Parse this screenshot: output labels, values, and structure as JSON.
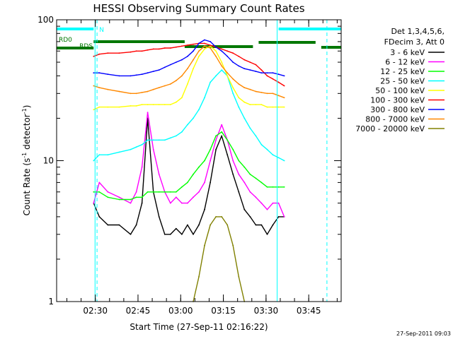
{
  "chart_data": {
    "type": "line",
    "title": "HESSI Observing Summary Count Rates",
    "xlabel": "Start Time (27-Sep-11 02:16:22)",
    "ylabel": "Count Rate (s⁻¹ detector⁻¹)",
    "ylabel_parts": [
      "Count Rate (s",
      "-1",
      " detector",
      "-1",
      ")"
    ],
    "y_scale": "log",
    "ylim": [
      1,
      100
    ],
    "y_ticks": [
      "1",
      "10",
      "100"
    ],
    "xlim_minutes": [
      0,
      100
    ],
    "x_ticks": [
      {
        "label": "02:30",
        "min": 13.6
      },
      {
        "label": "02:45",
        "min": 28.6
      },
      {
        "label": "03:00",
        "min": 43.6
      },
      {
        "label": "03:15",
        "min": 58.6
      },
      {
        "label": "03:30",
        "min": 73.6
      },
      {
        "label": "03:45",
        "min": 88.6
      }
    ],
    "legend_placement": "right",
    "legend_header": [
      "Det 1,3,4,5,6,",
      "FDecim 3, Att 0"
    ],
    "timestamp": "27-Sep-2011 09:03",
    "flags": [
      {
        "name": "N",
        "color": "#00ffff"
      },
      {
        "name": "RD0",
        "color": "#007700"
      },
      {
        "name": "RDS",
        "color": "#007700"
      }
    ],
    "series": [
      {
        "name": "3 - 6 keV",
        "color": "#000000",
        "points": [
          [
            13,
            5
          ],
          [
            15,
            4
          ],
          [
            18,
            3.5
          ],
          [
            22,
            3.5
          ],
          [
            26,
            3
          ],
          [
            28,
            3.5
          ],
          [
            30,
            5
          ],
          [
            32,
            20
          ],
          [
            34,
            6
          ],
          [
            36,
            4
          ],
          [
            38,
            3
          ],
          [
            40,
            3
          ],
          [
            42,
            3.3
          ],
          [
            44,
            3
          ],
          [
            46,
            3.5
          ],
          [
            48,
            3
          ],
          [
            50,
            3.5
          ],
          [
            52,
            4.5
          ],
          [
            54,
            7
          ],
          [
            56,
            12
          ],
          [
            58,
            15
          ],
          [
            60,
            11
          ],
          [
            62,
            8
          ],
          [
            64,
            6
          ],
          [
            66,
            4.5
          ],
          [
            68,
            4
          ],
          [
            70,
            3.5
          ],
          [
            72,
            3.5
          ],
          [
            74,
            3
          ],
          [
            76,
            3.5
          ],
          [
            78,
            4
          ],
          [
            80,
            4
          ]
        ]
      },
      {
        "name": "6 - 12 keV",
        "color": "#ff00ff",
        "points": [
          [
            13,
            5
          ],
          [
            15,
            7
          ],
          [
            18,
            6
          ],
          [
            22,
            5.5
          ],
          [
            26,
            5
          ],
          [
            28,
            6
          ],
          [
            30,
            9
          ],
          [
            32,
            22
          ],
          [
            34,
            12
          ],
          [
            36,
            8
          ],
          [
            38,
            6
          ],
          [
            40,
            5
          ],
          [
            42,
            5.5
          ],
          [
            44,
            5
          ],
          [
            46,
            5
          ],
          [
            48,
            5.5
          ],
          [
            50,
            6
          ],
          [
            52,
            7
          ],
          [
            54,
            10
          ],
          [
            56,
            14
          ],
          [
            58,
            18
          ],
          [
            60,
            14
          ],
          [
            62,
            10
          ],
          [
            64,
            8
          ],
          [
            66,
            7
          ],
          [
            68,
            6
          ],
          [
            70,
            5.5
          ],
          [
            72,
            5
          ],
          [
            74,
            4.5
          ],
          [
            76,
            5
          ],
          [
            78,
            5
          ],
          [
            80,
            4
          ]
        ]
      },
      {
        "name": "12 - 25 keV",
        "color": "#00ff00",
        "points": [
          [
            13,
            6
          ],
          [
            15,
            6
          ],
          [
            18,
            5.5
          ],
          [
            22,
            5.3
          ],
          [
            26,
            5.3
          ],
          [
            28,
            5.5
          ],
          [
            30,
            5.5
          ],
          [
            32,
            6
          ],
          [
            34,
            6
          ],
          [
            36,
            6
          ],
          [
            38,
            6
          ],
          [
            40,
            6
          ],
          [
            42,
            6
          ],
          [
            44,
            6.5
          ],
          [
            46,
            7
          ],
          [
            48,
            8
          ],
          [
            50,
            9
          ],
          [
            52,
            10
          ],
          [
            54,
            12
          ],
          [
            56,
            15
          ],
          [
            58,
            16
          ],
          [
            60,
            14
          ],
          [
            62,
            12
          ],
          [
            64,
            10
          ],
          [
            66,
            9
          ],
          [
            68,
            8
          ],
          [
            70,
            7.5
          ],
          [
            72,
            7
          ],
          [
            74,
            6.5
          ],
          [
            76,
            6.5
          ],
          [
            78,
            6.5
          ],
          [
            80,
            6.5
          ]
        ]
      },
      {
        "name": "25 - 50 keV",
        "color": "#00ffff",
        "points": [
          [
            13,
            10
          ],
          [
            15,
            11
          ],
          [
            18,
            11
          ],
          [
            22,
            11.5
          ],
          [
            26,
            12
          ],
          [
            28,
            12.5
          ],
          [
            30,
            13
          ],
          [
            32,
            14
          ],
          [
            34,
            14
          ],
          [
            36,
            14
          ],
          [
            38,
            14
          ],
          [
            40,
            14.5
          ],
          [
            42,
            15
          ],
          [
            44,
            16
          ],
          [
            46,
            18
          ],
          [
            48,
            20
          ],
          [
            50,
            23
          ],
          [
            52,
            28
          ],
          [
            54,
            36
          ],
          [
            56,
            40
          ],
          [
            58,
            44
          ],
          [
            60,
            40
          ],
          [
            62,
            30
          ],
          [
            64,
            24
          ],
          [
            66,
            20
          ],
          [
            68,
            17
          ],
          [
            70,
            15
          ],
          [
            72,
            13
          ],
          [
            74,
            12
          ],
          [
            76,
            11
          ],
          [
            78,
            10.5
          ],
          [
            80,
            10
          ]
        ]
      },
      {
        "name": "50 - 100 keV",
        "color": "#ffff00",
        "points": [
          [
            13,
            23
          ],
          [
            15,
            24
          ],
          [
            18,
            24
          ],
          [
            22,
            24
          ],
          [
            26,
            24.5
          ],
          [
            28,
            24.5
          ],
          [
            30,
            25
          ],
          [
            32,
            25
          ],
          [
            34,
            25
          ],
          [
            36,
            25
          ],
          [
            38,
            25
          ],
          [
            40,
            25
          ],
          [
            42,
            26
          ],
          [
            44,
            28
          ],
          [
            46,
            35
          ],
          [
            48,
            45
          ],
          [
            50,
            55
          ],
          [
            52,
            62
          ],
          [
            54,
            65
          ],
          [
            56,
            60
          ],
          [
            58,
            50
          ],
          [
            60,
            40
          ],
          [
            62,
            33
          ],
          [
            64,
            28
          ],
          [
            66,
            26
          ],
          [
            68,
            25
          ],
          [
            70,
            25
          ],
          [
            72,
            25
          ],
          [
            74,
            24
          ],
          [
            76,
            24
          ],
          [
            78,
            24
          ],
          [
            80,
            24
          ]
        ]
      },
      {
        "name": "100 - 300 keV",
        "color": "#ff0000",
        "points": [
          [
            13,
            55
          ],
          [
            15,
            57
          ],
          [
            18,
            58
          ],
          [
            22,
            58
          ],
          [
            26,
            59
          ],
          [
            28,
            60
          ],
          [
            30,
            60
          ],
          [
            32,
            61
          ],
          [
            34,
            62
          ],
          [
            36,
            62
          ],
          [
            38,
            63
          ],
          [
            40,
            63
          ],
          [
            42,
            64
          ],
          [
            44,
            65
          ],
          [
            46,
            66
          ],
          [
            48,
            67
          ],
          [
            50,
            68
          ],
          [
            52,
            68
          ],
          [
            54,
            66
          ],
          [
            56,
            64
          ],
          [
            58,
            62
          ],
          [
            60,
            60
          ],
          [
            62,
            58
          ],
          [
            64,
            55
          ],
          [
            66,
            52
          ],
          [
            68,
            50
          ],
          [
            70,
            48
          ],
          [
            72,
            44
          ],
          [
            74,
            40
          ],
          [
            76,
            38
          ],
          [
            78,
            36
          ],
          [
            80,
            34
          ]
        ]
      },
      {
        "name": "300 - 800 keV",
        "color": "#0000ff",
        "points": [
          [
            13,
            42
          ],
          [
            15,
            42
          ],
          [
            18,
            41
          ],
          [
            22,
            40
          ],
          [
            26,
            40
          ],
          [
            28,
            40.5
          ],
          [
            30,
            41
          ],
          [
            32,
            42
          ],
          [
            34,
            43
          ],
          [
            36,
            44
          ],
          [
            38,
            46
          ],
          [
            40,
            48
          ],
          [
            42,
            50
          ],
          [
            44,
            52
          ],
          [
            46,
            55
          ],
          [
            48,
            60
          ],
          [
            50,
            68
          ],
          [
            52,
            72
          ],
          [
            54,
            70
          ],
          [
            56,
            64
          ],
          [
            58,
            60
          ],
          [
            60,
            55
          ],
          [
            62,
            50
          ],
          [
            64,
            47
          ],
          [
            66,
            45
          ],
          [
            68,
            44
          ],
          [
            70,
            43
          ],
          [
            72,
            42
          ],
          [
            74,
            42
          ],
          [
            76,
            42
          ],
          [
            78,
            41
          ],
          [
            80,
            40
          ]
        ]
      },
      {
        "name": "800 - 7000 keV",
        "color": "#ff8800",
        "points": [
          [
            13,
            34
          ],
          [
            15,
            33
          ],
          [
            18,
            32
          ],
          [
            22,
            31
          ],
          [
            26,
            30
          ],
          [
            28,
            30
          ],
          [
            30,
            30.5
          ],
          [
            32,
            31
          ],
          [
            34,
            32
          ],
          [
            36,
            33
          ],
          [
            38,
            34
          ],
          [
            40,
            35
          ],
          [
            42,
            37
          ],
          [
            44,
            40
          ],
          [
            46,
            45
          ],
          [
            48,
            52
          ],
          [
            50,
            60
          ],
          [
            52,
            65
          ],
          [
            54,
            63
          ],
          [
            56,
            55
          ],
          [
            58,
            47
          ],
          [
            60,
            42
          ],
          [
            62,
            38
          ],
          [
            64,
            35
          ],
          [
            66,
            33
          ],
          [
            68,
            32
          ],
          [
            70,
            31
          ],
          [
            72,
            30.5
          ],
          [
            74,
            30
          ],
          [
            76,
            30
          ],
          [
            78,
            29
          ],
          [
            80,
            28
          ]
        ]
      },
      {
        "name": "7000 - 20000 keV",
        "color": "#808000",
        "points": [
          [
            48,
            1
          ],
          [
            50,
            1.5
          ],
          [
            52,
            2.5
          ],
          [
            54,
            3.5
          ],
          [
            56,
            4
          ],
          [
            58,
            4
          ],
          [
            60,
            3.5
          ],
          [
            62,
            2.5
          ],
          [
            64,
            1.5
          ],
          [
            66,
            1
          ]
        ]
      }
    ]
  }
}
